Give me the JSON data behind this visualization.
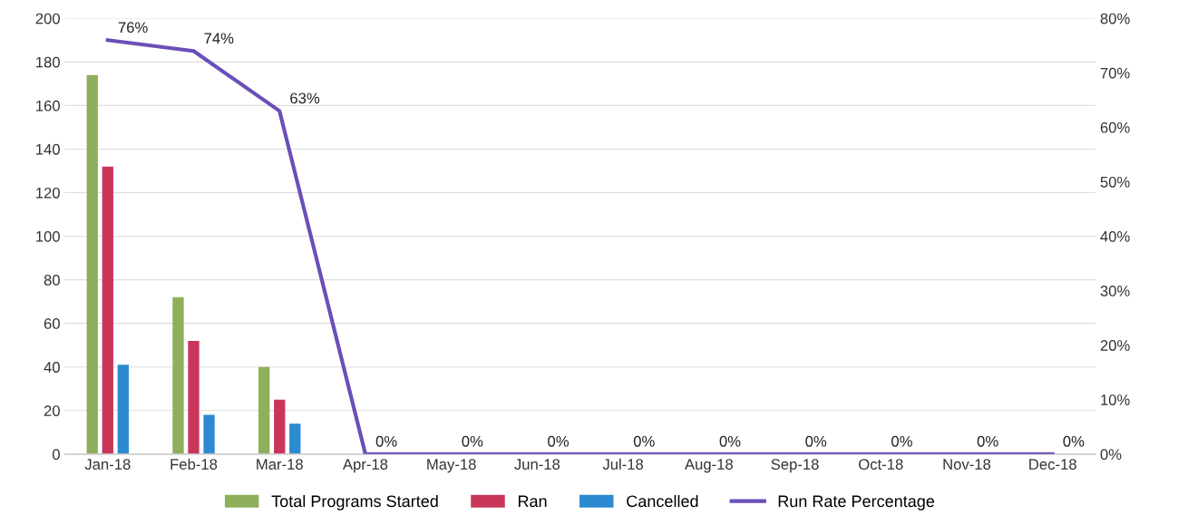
{
  "chart_data": {
    "type": "bar",
    "categories": [
      "Jan-18",
      "Feb-18",
      "Mar-18",
      "Apr-18",
      "May-18",
      "Jun-18",
      "Jul-18",
      "Aug-18",
      "Sep-18",
      "Oct-18",
      "Nov-18",
      "Dec-18"
    ],
    "series": [
      {
        "name": "Total Programs Started",
        "color": "#8faf5c",
        "values": [
          174,
          72,
          40,
          null,
          null,
          null,
          null,
          null,
          null,
          null,
          null,
          null
        ]
      },
      {
        "name": "Ran",
        "color": "#c8375a",
        "values": [
          132,
          52,
          25,
          null,
          null,
          null,
          null,
          null,
          null,
          null,
          null,
          null
        ]
      },
      {
        "name": "Cancelled",
        "color": "#2b8ad0",
        "values": [
          41,
          18,
          14,
          null,
          null,
          null,
          null,
          null,
          null,
          null,
          null,
          null
        ]
      },
      {
        "name": "Run Rate Percentage",
        "type": "line",
        "axis": "y2",
        "color": "#6b4fb8",
        "values": [
          76,
          74,
          63,
          0,
          0,
          0,
          0,
          0,
          0,
          0,
          0,
          0
        ],
        "value_labels": [
          "76%",
          "74%",
          "63%",
          "0%",
          "0%",
          "0%",
          "0%",
          "0%",
          "0%",
          "0%",
          "0%",
          "0%"
        ]
      }
    ],
    "ylim": [
      0,
      200
    ],
    "yticks": [
      0,
      20,
      40,
      60,
      80,
      100,
      120,
      140,
      160,
      180,
      200
    ],
    "y2lim": [
      0,
      80
    ],
    "y2ticks": [
      {
        "value": 0,
        "label": "0%"
      },
      {
        "value": 10,
        "label": "10%"
      },
      {
        "value": 20,
        "label": "20%"
      },
      {
        "value": 30,
        "label": "30%"
      },
      {
        "value": 40,
        "label": "40%"
      },
      {
        "value": 50,
        "label": "50%"
      },
      {
        "value": 60,
        "label": "60%"
      },
      {
        "value": 70,
        "label": "70%"
      },
      {
        "value": 80,
        "label": "80%"
      }
    ],
    "grid": "y",
    "legend": "bottom",
    "marker": "none"
  }
}
